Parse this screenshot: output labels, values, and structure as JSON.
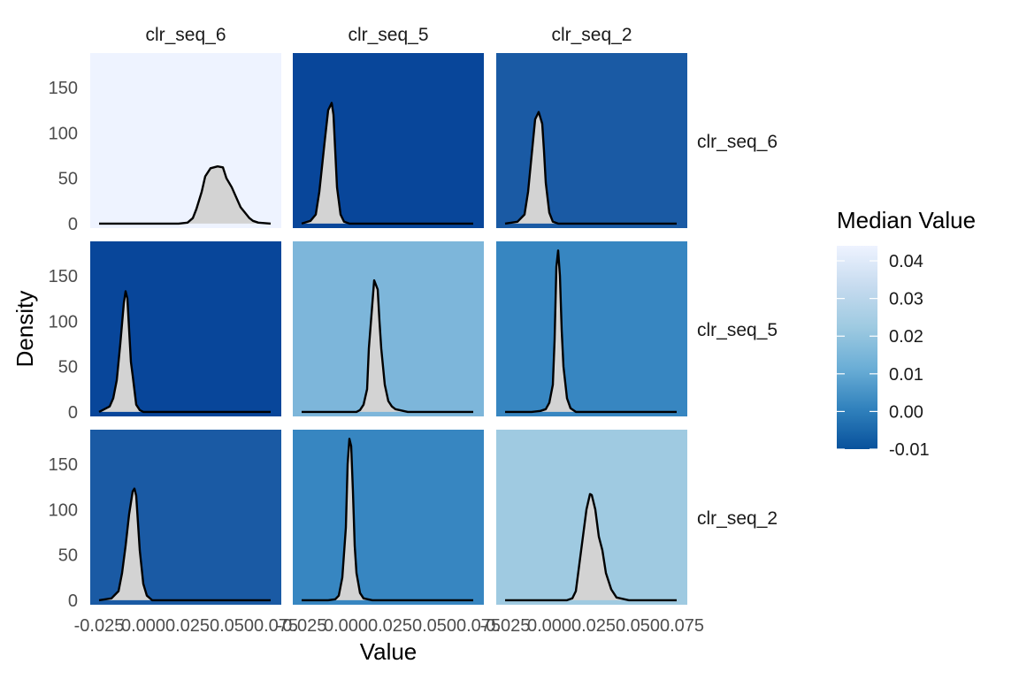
{
  "chart_data": {
    "type": "area",
    "chart_kind": "faceted density plot grid",
    "xlabel": "Value",
    "ylabel": "Density",
    "col_strips": [
      "clr_seq_6",
      "clr_seq_5",
      "clr_seq_2"
    ],
    "row_strips": [
      "clr_seq_6",
      "clr_seq_5",
      "clr_seq_2"
    ],
    "xlim": [
      -0.03,
      0.078
    ],
    "ylim": [
      -5,
      188
    ],
    "x_ticks": [
      -0.025,
      0.0,
      0.025,
      0.05,
      0.075
    ],
    "x_tick_labels": [
      "-0.025",
      "0.000",
      "0.025",
      "0.050",
      "0.075"
    ],
    "y_ticks": [
      0,
      50,
      100,
      150
    ],
    "y_tick_labels": [
      "0",
      "50",
      "100",
      "150"
    ],
    "density_fill": "#d3d3d3",
    "density_line": "#000000",
    "legend": {
      "title": "Median Value",
      "position": "right",
      "range": [
        -0.01,
        0.044
      ],
      "ticks": [
        -0.01,
        0.0,
        0.01,
        0.02,
        0.03,
        0.04
      ],
      "tick_labels": [
        "-0.01",
        "0.00",
        "0.01",
        "0.02",
        "0.03",
        "0.04"
      ],
      "colors": [
        "#08519c",
        "#3182bd",
        "#6baed6",
        "#9ecae1",
        "#c6dbef",
        "#eef3ff"
      ]
    },
    "panels": [
      {
        "row": 0,
        "col": 0,
        "median": 0.044,
        "bg": "#eef3ff",
        "x": [
          -0.025,
          0.0,
          0.02,
          0.025,
          0.028,
          0.03,
          0.033,
          0.035,
          0.038,
          0.042,
          0.045,
          0.047,
          0.05,
          0.055,
          0.06,
          0.062,
          0.065,
          0.072
        ],
        "y": [
          0,
          0,
          0,
          1,
          6,
          16,
          35,
          52,
          61,
          63,
          62,
          50,
          40,
          18,
          6,
          3,
          1,
          0
        ]
      },
      {
        "row": 0,
        "col": 1,
        "median": -0.01,
        "bg": "#08469a",
        "x": [
          -0.025,
          -0.02,
          -0.017,
          -0.015,
          -0.012,
          -0.01,
          -0.008,
          -0.007,
          -0.006,
          -0.005,
          -0.003,
          -0.001,
          0.002,
          0.01,
          0.072
        ],
        "y": [
          0,
          3,
          10,
          35,
          90,
          125,
          133,
          120,
          80,
          40,
          10,
          2,
          0,
          0,
          0
        ]
      },
      {
        "row": 0,
        "col": 2,
        "median": -0.004,
        "bg": "#1a5aa4",
        "x": [
          -0.025,
          -0.018,
          -0.014,
          -0.012,
          -0.01,
          -0.008,
          -0.006,
          -0.004,
          -0.003,
          -0.002,
          0.0,
          0.002,
          0.005,
          0.072
        ],
        "y": [
          0,
          2,
          10,
          35,
          75,
          115,
          123,
          110,
          80,
          45,
          12,
          2,
          0,
          0
        ]
      },
      {
        "row": 1,
        "col": 0,
        "median": -0.01,
        "bg": "#08469a",
        "x": [
          -0.025,
          -0.022,
          -0.019,
          -0.017,
          -0.015,
          -0.013,
          -0.011,
          -0.01,
          -0.009,
          -0.008,
          -0.007,
          -0.006,
          -0.004,
          -0.002,
          0.0,
          0.072
        ],
        "y": [
          0,
          3,
          6,
          15,
          35,
          75,
          120,
          133,
          125,
          90,
          55,
          40,
          8,
          2,
          0,
          0
        ]
      },
      {
        "row": 1,
        "col": 1,
        "median": 0.018,
        "bg": "#7db6da",
        "x": [
          -0.025,
          0.006,
          0.008,
          0.01,
          0.012,
          0.013,
          0.015,
          0.016,
          0.017,
          0.018,
          0.019,
          0.02,
          0.022,
          0.024,
          0.026,
          0.028,
          0.035,
          0.072
        ],
        "y": [
          0,
          0,
          2,
          8,
          25,
          70,
          120,
          145,
          140,
          135,
          100,
          70,
          30,
          12,
          6,
          3,
          0,
          0
        ]
      },
      {
        "row": 1,
        "col": 2,
        "median": 0.005,
        "bg": "#3786c1",
        "x": [
          -0.025,
          -0.01,
          -0.005,
          -0.002,
          0.0,
          0.002,
          0.003,
          0.004,
          0.005,
          0.006,
          0.007,
          0.008,
          0.01,
          0.012,
          0.015,
          0.072
        ],
        "y": [
          0,
          0,
          1,
          3,
          10,
          30,
          80,
          160,
          178,
          150,
          90,
          50,
          15,
          4,
          0,
          0
        ]
      },
      {
        "row": 2,
        "col": 0,
        "median": -0.004,
        "bg": "#1a5aa4",
        "x": [
          -0.025,
          -0.018,
          -0.014,
          -0.012,
          -0.01,
          -0.008,
          -0.006,
          -0.005,
          -0.004,
          -0.003,
          -0.002,
          0.0,
          0.002,
          0.005,
          0.072
        ],
        "y": [
          0,
          2,
          10,
          30,
          60,
          95,
          120,
          123,
          115,
          85,
          55,
          18,
          5,
          0,
          0
        ]
      },
      {
        "row": 2,
        "col": 1,
        "median": 0.005,
        "bg": "#3786c1",
        "x": [
          -0.025,
          -0.01,
          -0.006,
          -0.004,
          -0.002,
          0.0,
          0.001,
          0.002,
          0.003,
          0.004,
          0.005,
          0.006,
          0.008,
          0.01,
          0.015,
          0.072
        ],
        "y": [
          0,
          0,
          1,
          5,
          25,
          80,
          150,
          178,
          170,
          120,
          60,
          30,
          8,
          2,
          0,
          0
        ]
      },
      {
        "row": 2,
        "col": 2,
        "median": 0.025,
        "bg": "#9fcae1",
        "x": [
          -0.025,
          0.01,
          0.013,
          0.015,
          0.017,
          0.019,
          0.021,
          0.023,
          0.024,
          0.026,
          0.028,
          0.03,
          0.032,
          0.035,
          0.038,
          0.045,
          0.072
        ],
        "y": [
          0,
          0,
          2,
          10,
          40,
          70,
          100,
          117,
          116,
          100,
          70,
          55,
          30,
          12,
          3,
          0,
          0
        ]
      }
    ]
  }
}
